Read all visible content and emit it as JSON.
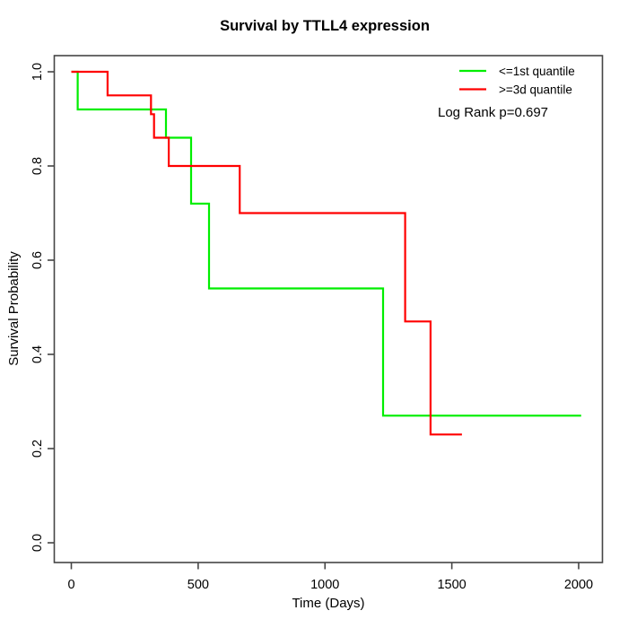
{
  "chart_data": {
    "type": "line",
    "subtype": "kaplan-meier-step-curves",
    "title": "Survival by TTLL4 expression",
    "xlabel": "Time (Days)",
    "ylabel": "Survival Probability",
    "xlim": [
      0,
      2070
    ],
    "ylim": [
      0.0,
      1.0
    ],
    "x_ticks": [
      0,
      500,
      1000,
      1500,
      2000
    ],
    "y_ticks": [
      0.0,
      0.2,
      0.4,
      0.6,
      0.8,
      1.0
    ],
    "grid": false,
    "legend_position": "top-right-inside",
    "annotation": "Log Rank p=0.697",
    "series": [
      {
        "name": "<=1st quantile",
        "color": "#00ee00",
        "steps": [
          [
            0,
            1.0
          ],
          [
            25,
            0.92
          ],
          [
            373,
            0.86
          ],
          [
            472,
            0.72
          ],
          [
            543,
            0.54
          ],
          [
            1229,
            0.27
          ]
        ],
        "end_time": 2010
      },
      {
        "name": ">=3d quantile",
        "color": "#ff0000",
        "steps": [
          [
            0,
            1.0
          ],
          [
            143,
            0.95
          ],
          [
            314,
            0.91
          ],
          [
            326,
            0.86
          ],
          [
            384,
            0.8
          ],
          [
            664,
            0.7
          ],
          [
            1316,
            0.47
          ],
          [
            1416,
            0.23
          ]
        ],
        "end_time": 1540
      }
    ]
  }
}
